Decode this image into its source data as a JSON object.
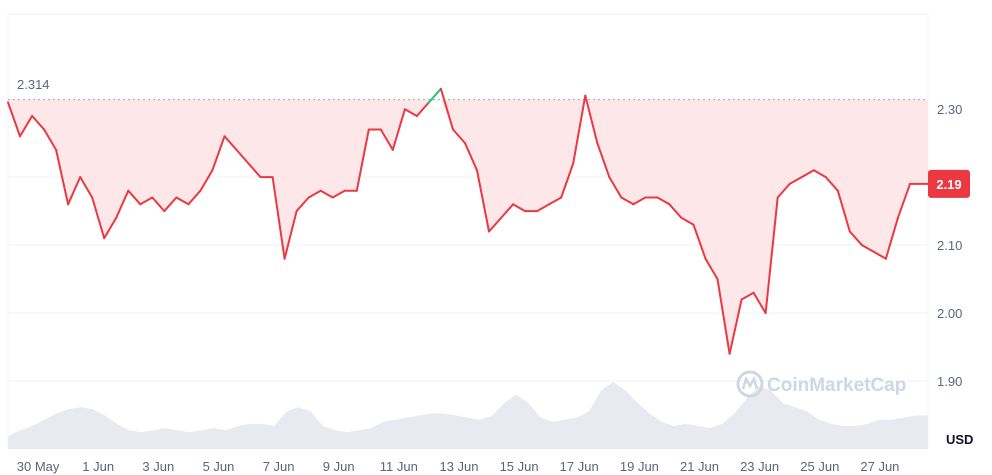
{
  "chart_data": {
    "type": "line",
    "x_ticks": [
      "30 May",
      "1 Jun",
      "3 Jun",
      "5 Jun",
      "7 Jun",
      "9 Jun",
      "11 Jun",
      "13 Jun",
      "15 Jun",
      "17 Jun",
      "19 Jun",
      "21 Jun",
      "23 Jun",
      "25 Jun",
      "27 Jun"
    ],
    "y_ticks": [
      "1.90",
      "2.00",
      "2.10",
      "2.30"
    ],
    "ylim": [
      1.8,
      2.44
    ],
    "x_range": [
      0,
      30.6
    ],
    "unit": "USD",
    "reference_value": 2.314,
    "reference_label": "2.314",
    "last_value": 2.19,
    "last_label": "2.19",
    "watermark": "CoinMarketCap",
    "grid": true,
    "colors": {
      "up": "#16c784",
      "down": "#ea3943",
      "fill": "#fde3e4",
      "volume": "#e8eaef",
      "grid": "#eff2f5"
    },
    "series": [
      {
        "x": [
          0,
          0.4,
          0.8,
          1.2,
          1.6,
          2.0,
          2.4,
          2.8,
          3.2,
          3.6,
          4.0,
          4.4,
          4.8,
          5.2,
          5.6,
          6.0,
          6.4,
          6.8,
          7.2,
          7.6,
          8.0,
          8.4,
          8.8,
          9.2,
          9.6,
          10.0,
          10.4,
          10.8,
          11.2,
          11.6,
          12.0,
          12.4,
          12.8,
          13.2,
          13.6,
          14.0,
          14.4,
          14.8,
          15.2,
          15.6,
          16.0,
          16.4,
          16.8,
          17.2,
          17.6,
          18.0,
          18.4,
          18.8,
          19.2,
          19.6,
          20.0,
          20.4,
          20.8,
          21.2,
          21.6,
          22.0,
          22.4,
          22.8,
          23.2,
          23.6,
          24.0,
          24.4,
          24.8,
          25.2,
          25.6,
          26.0,
          26.4,
          26.8,
          27.2,
          27.6,
          28.0,
          28.4,
          28.8,
          29.2,
          29.6,
          30.0,
          30.6
        ],
        "values": [
          2.31,
          2.26,
          2.29,
          2.27,
          2.24,
          2.16,
          2.2,
          2.17,
          2.11,
          2.14,
          2.18,
          2.16,
          2.17,
          2.15,
          2.17,
          2.16,
          2.18,
          2.21,
          2.26,
          2.24,
          2.22,
          2.2,
          2.2,
          2.08,
          2.15,
          2.17,
          2.18,
          2.17,
          2.18,
          2.18,
          2.27,
          2.27,
          2.24,
          2.3,
          2.29,
          2.31,
          2.33,
          2.27,
          2.25,
          2.21,
          2.12,
          2.14,
          2.16,
          2.15,
          2.15,
          2.16,
          2.17,
          2.22,
          2.32,
          2.25,
          2.2,
          2.17,
          2.16,
          2.17,
          2.17,
          2.16,
          2.14,
          2.13,
          2.08,
          2.05,
          1.94,
          2.02,
          2.03,
          2.0,
          2.17,
          2.19,
          2.2,
          2.21,
          2.2,
          2.18,
          2.12,
          2.1,
          2.09,
          2.08,
          2.14,
          2.19,
          2.19
        ]
      }
    ],
    "volume": [
      0.3,
      0.45,
      0.55,
      0.7,
      0.85,
      0.95,
      1.0,
      0.95,
      0.8,
      0.6,
      0.45,
      0.4,
      0.45,
      0.5,
      0.45,
      0.4,
      0.45,
      0.5,
      0.45,
      0.55,
      0.6,
      0.6,
      0.55,
      0.9,
      1.0,
      0.9,
      0.55,
      0.45,
      0.4,
      0.45,
      0.5,
      0.65,
      0.7,
      0.75,
      0.8,
      0.85,
      0.85,
      0.8,
      0.75,
      0.7,
      0.8,
      1.1,
      1.3,
      1.1,
      0.75,
      0.65,
      0.7,
      0.75,
      0.9,
      1.4,
      1.6,
      1.4,
      1.1,
      0.85,
      0.65,
      0.55,
      0.6,
      0.55,
      0.5,
      0.6,
      0.85,
      1.2,
      1.5,
      1.4,
      1.1,
      1.0,
      0.9,
      0.7,
      0.6,
      0.55,
      0.55,
      0.6,
      0.7,
      0.7,
      0.75,
      0.8,
      0.8
    ]
  }
}
